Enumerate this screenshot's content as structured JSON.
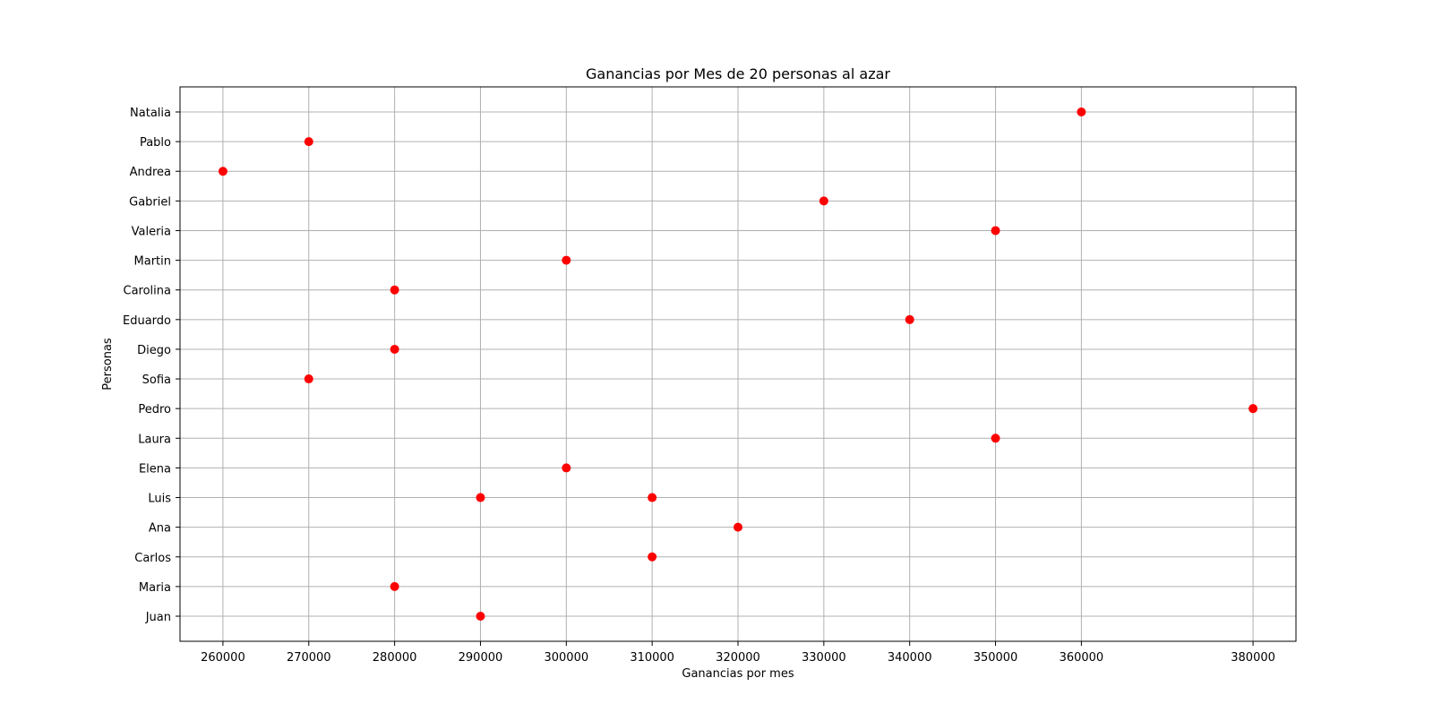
{
  "chart_data": {
    "type": "scatter",
    "title": "Ganancias por Mes de 20 personas al azar",
    "xlabel": "Ganancias por mes",
    "ylabel": "Personas",
    "xlim": [
      255000,
      385000
    ],
    "x_ticks": [
      260000,
      270000,
      280000,
      290000,
      300000,
      310000,
      320000,
      330000,
      340000,
      350000,
      360000,
      380000
    ],
    "categories": [
      "Juan",
      "Maria",
      "Carlos",
      "Ana",
      "Luis",
      "Elena",
      "Laura",
      "Pedro",
      "Sofia",
      "Diego",
      "Eduardo",
      "Carolina",
      "Martin",
      "Valeria",
      "Gabriel",
      "Andrea",
      "Pablo",
      "Natalia"
    ],
    "points": [
      {
        "person": "Juan",
        "value": 290000
      },
      {
        "person": "Maria",
        "value": 280000
      },
      {
        "person": "Carlos",
        "value": 310000
      },
      {
        "person": "Ana",
        "value": 320000
      },
      {
        "person": "Luis",
        "value": 290000
      },
      {
        "person": "Luis",
        "value": 310000
      },
      {
        "person": "Elena",
        "value": 300000
      },
      {
        "person": "Laura",
        "value": 350000
      },
      {
        "person": "Pedro",
        "value": 380000
      },
      {
        "person": "Sofia",
        "value": 270000
      },
      {
        "person": "Diego",
        "value": 280000
      },
      {
        "person": "Eduardo",
        "value": 340000
      },
      {
        "person": "Carolina",
        "value": 280000
      },
      {
        "person": "Martin",
        "value": 300000
      },
      {
        "person": "Valeria",
        "value": 350000
      },
      {
        "person": "Gabriel",
        "value": 330000
      },
      {
        "person": "Andrea",
        "value": 260000
      },
      {
        "person": "Pablo",
        "value": 270000
      },
      {
        "person": "Natalia",
        "value": 360000
      }
    ],
    "grid": true,
    "marker_color": "#ff0000",
    "grid_color": "#b0b0b0"
  }
}
